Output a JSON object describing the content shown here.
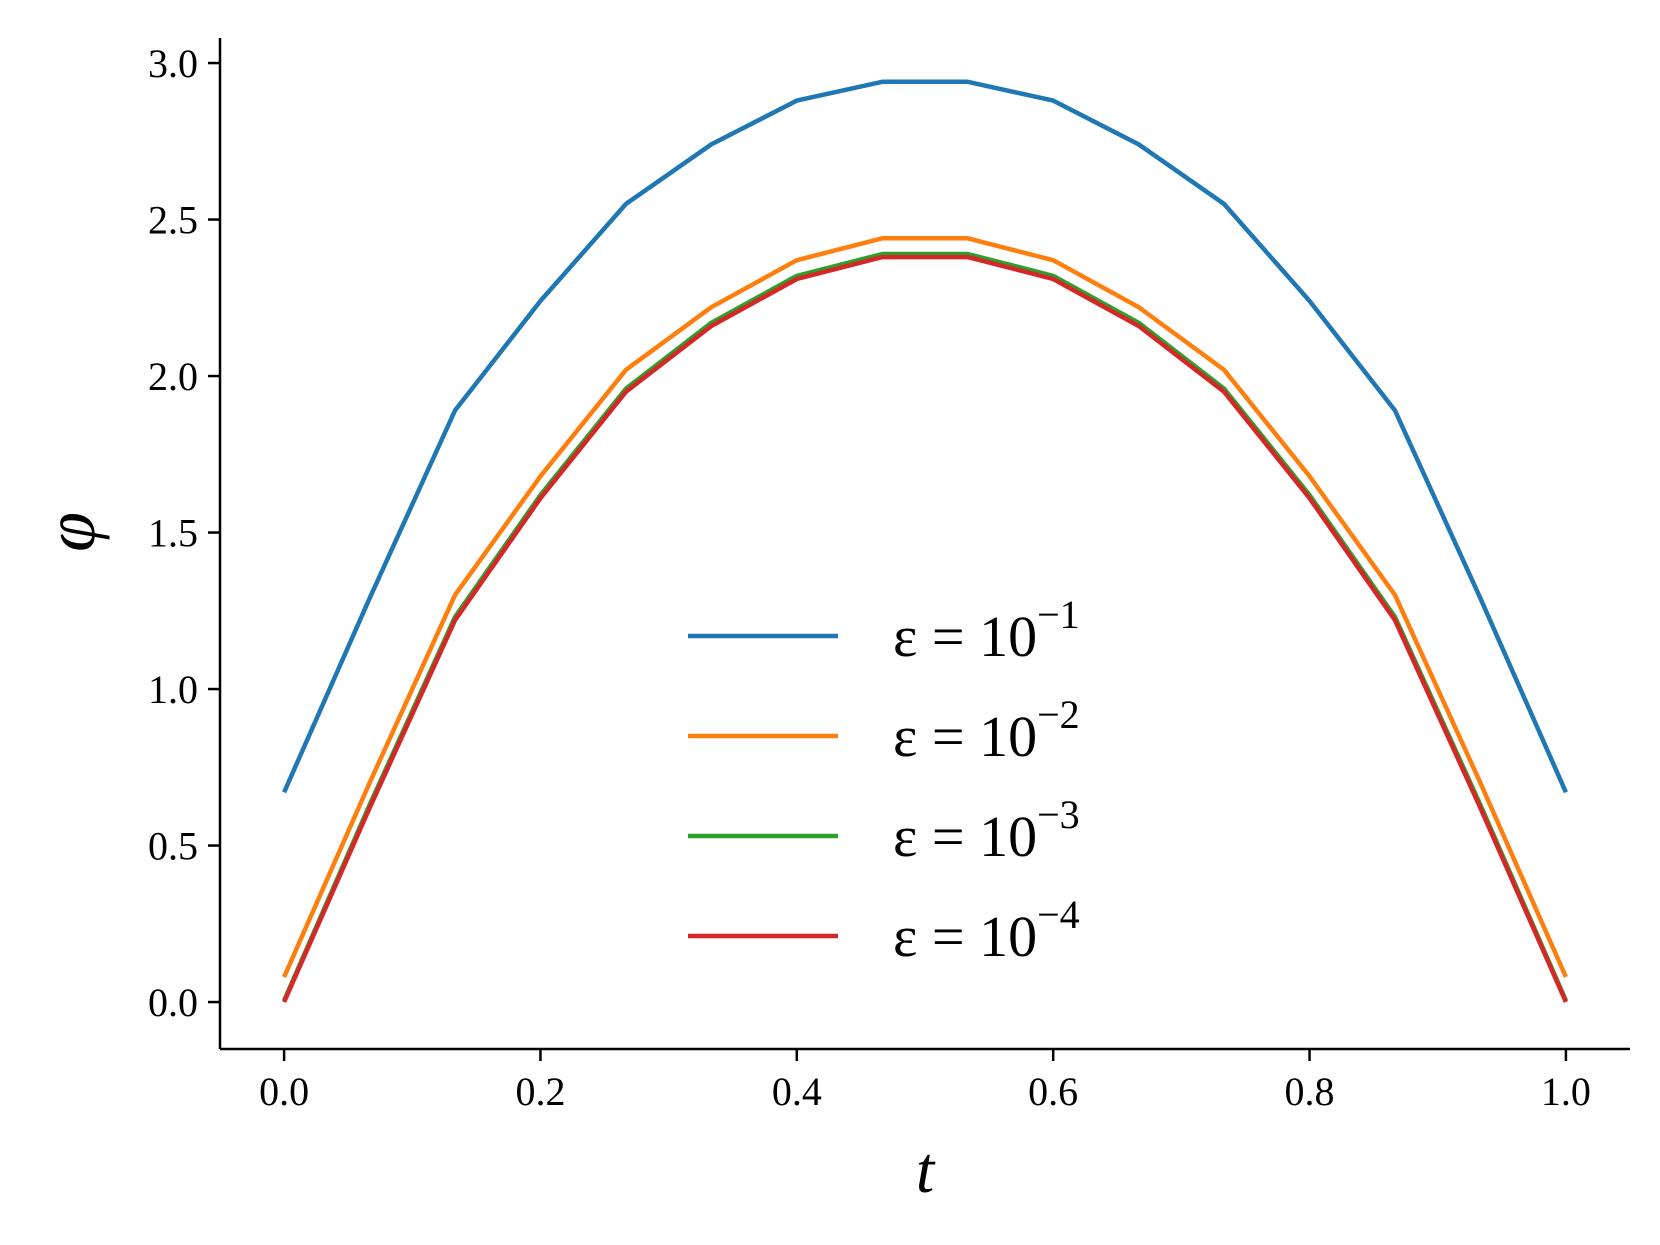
{
  "chart_data": {
    "type": "line",
    "title": "",
    "xlabel": "t",
    "ylabel": "φ",
    "xlim": [
      -0.05,
      1.05
    ],
    "ylim": [
      -0.15,
      3.08
    ],
    "xticks": [
      0.0,
      0.2,
      0.4,
      0.6,
      0.8,
      1.0
    ],
    "xtick_labels": [
      "0.0",
      "0.2",
      "0.4",
      "0.6",
      "0.8",
      "1.0"
    ],
    "yticks": [
      0.0,
      0.5,
      1.0,
      1.5,
      2.0,
      2.5,
      3.0
    ],
    "ytick_labels": [
      "0.0",
      "0.5",
      "1.0",
      "1.5",
      "2.0",
      "2.5",
      "3.0"
    ],
    "grid": false,
    "legend_position": "center-bottom",
    "x": [
      0.0,
      0.0667,
      0.1333,
      0.2,
      0.2667,
      0.3333,
      0.4,
      0.4667,
      0.5333,
      0.6,
      0.6667,
      0.7333,
      0.8,
      0.8667,
      0.9333,
      1.0
    ],
    "series": [
      {
        "name": "ε = 10−1",
        "label_base": "ε = 10",
        "label_exp": "−1",
        "color": "#1f77b4",
        "values": [
          0.67,
          1.29,
          1.89,
          2.24,
          2.55,
          2.74,
          2.88,
          2.94,
          2.94,
          2.88,
          2.74,
          2.55,
          2.24,
          1.89,
          1.29,
          0.67
        ]
      },
      {
        "name": "ε = 10−2",
        "label_base": "ε = 10",
        "label_exp": "−2",
        "color": "#ff7f0e",
        "values": [
          0.08,
          0.7,
          1.3,
          1.68,
          2.02,
          2.22,
          2.37,
          2.44,
          2.44,
          2.37,
          2.22,
          2.02,
          1.68,
          1.3,
          0.7,
          0.08
        ]
      },
      {
        "name": "ε = 10−3",
        "label_base": "ε = 10",
        "label_exp": "−3",
        "color": "#2ca02c",
        "values": [
          0.005,
          0.63,
          1.23,
          1.62,
          1.96,
          2.17,
          2.32,
          2.39,
          2.39,
          2.32,
          2.17,
          1.96,
          1.62,
          1.23,
          0.63,
          0.005
        ]
      },
      {
        "name": "ε = 10−4",
        "label_base": "ε = 10",
        "label_exp": "−4",
        "color": "#d62728",
        "values": [
          0.0,
          0.62,
          1.22,
          1.61,
          1.95,
          2.16,
          2.31,
          2.38,
          2.38,
          2.31,
          2.16,
          1.95,
          1.61,
          1.22,
          0.62,
          0.0
        ]
      }
    ]
  }
}
